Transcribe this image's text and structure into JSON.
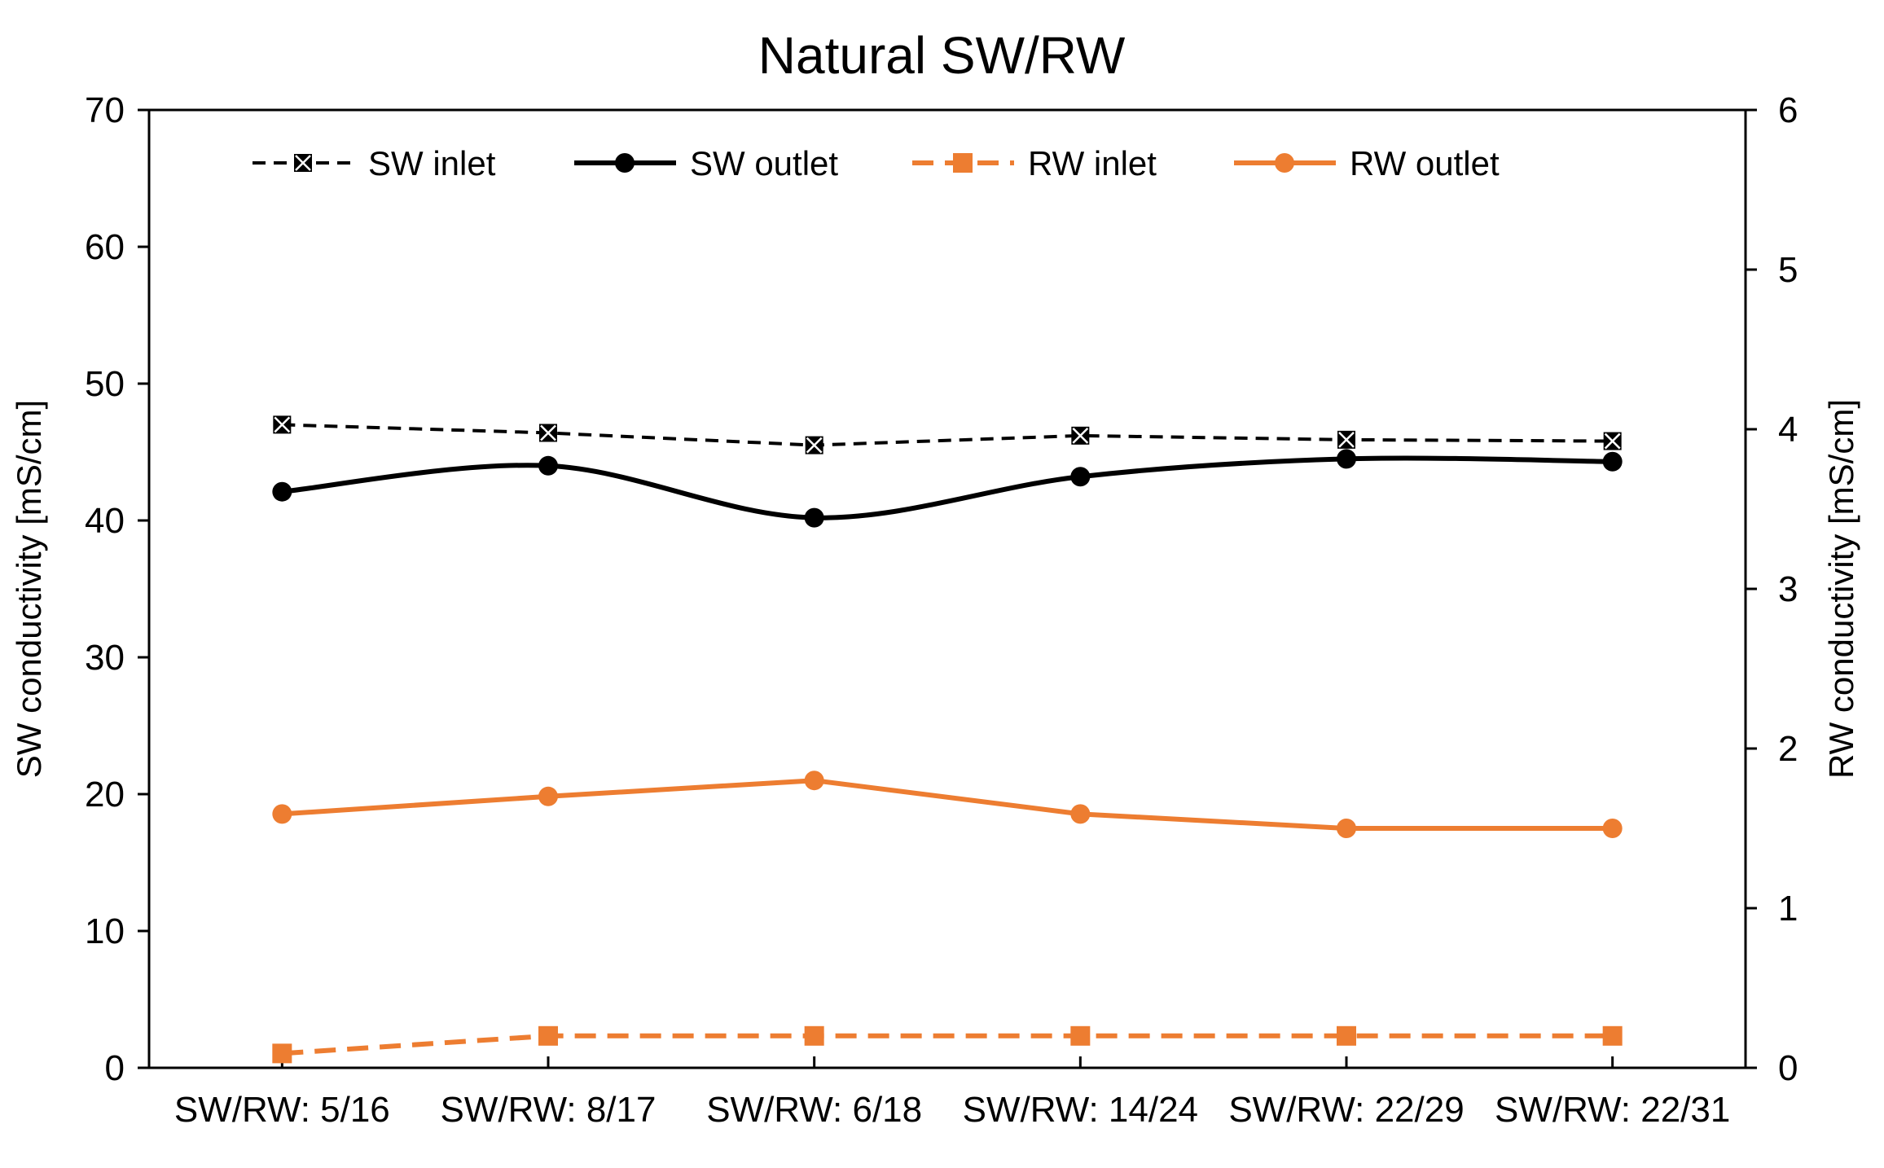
{
  "chart_data": {
    "type": "line",
    "title": "Natural SW/RW",
    "categories": [
      "SW/RW: 5/16",
      "SW/RW: 8/17",
      "SW/RW: 6/18",
      "SW/RW: 14/24",
      "SW/RW: 22/29",
      "SW/RW: 22/31"
    ],
    "ylabel": "SW conductivity [mS/cm]",
    "y2label": "RW conductivity [mS/cm]",
    "ylim": [
      0,
      70
    ],
    "y2lim": [
      0,
      6
    ],
    "yticks": [
      0,
      10,
      20,
      30,
      40,
      50,
      60,
      70
    ],
    "y2ticks": [
      0,
      1,
      2,
      3,
      4,
      5,
      6
    ],
    "grid": false,
    "legend_position": "top",
    "series": [
      {
        "name": "SW inlet",
        "axis": "left",
        "style": "dashed",
        "marker": "x-square",
        "color": "#000000",
        "values": [
          47.0,
          46.4,
          45.5,
          46.2,
          45.9,
          45.8
        ]
      },
      {
        "name": "SW outlet",
        "axis": "left",
        "style": "solid",
        "marker": "circle",
        "color": "#000000",
        "values": [
          42.1,
          44.0,
          40.2,
          43.2,
          44.5,
          44.3
        ]
      },
      {
        "name": "RW inlet",
        "axis": "right",
        "style": "dashed",
        "marker": "square",
        "color": "#ED7D31",
        "values": [
          0.09,
          0.2,
          0.2,
          0.2,
          0.2,
          0.2
        ]
      },
      {
        "name": "RW outlet",
        "axis": "right",
        "style": "solid",
        "marker": "circle",
        "color": "#ED7D31",
        "values": [
          1.59,
          1.7,
          1.8,
          1.59,
          1.5,
          1.5
        ]
      }
    ]
  }
}
